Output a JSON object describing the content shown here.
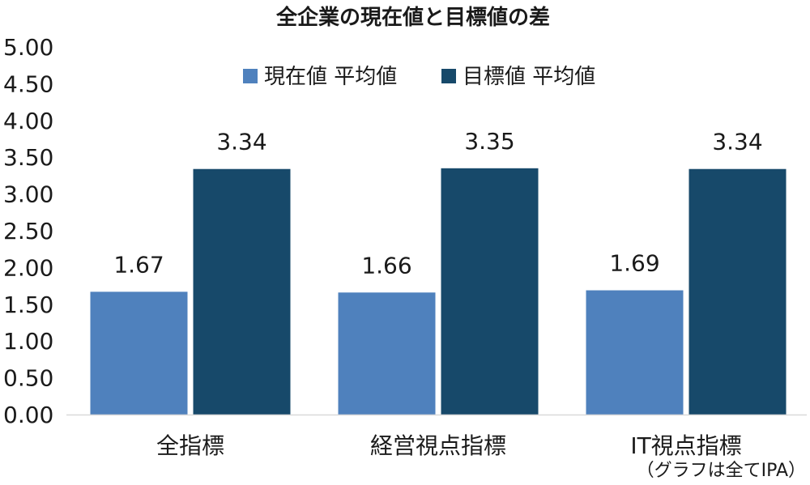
{
  "chart_data": {
    "type": "bar",
    "title": "全企業の現在値と目標値の差",
    "categories": [
      "全指標",
      "経営視点指標",
      "IT視点指標"
    ],
    "series": [
      {
        "name": "現在値 平均値",
        "values": [
          1.67,
          1.66,
          1.69
        ],
        "color": "#4f81bd"
      },
      {
        "name": "目標値 平均値",
        "values": [
          3.34,
          3.35,
          3.34
        ],
        "color": "#17496a"
      }
    ],
    "ylim": [
      0,
      5
    ],
    "yticks": [
      "0.00",
      "0.50",
      "1.00",
      "1.50",
      "2.00",
      "2.50",
      "3.00",
      "3.50",
      "4.00",
      "4.50",
      "5.00"
    ],
    "xlabel": "",
    "ylabel": "",
    "grid": false,
    "legend_position": "top-center",
    "note": "（グラフは全てIPA）"
  }
}
